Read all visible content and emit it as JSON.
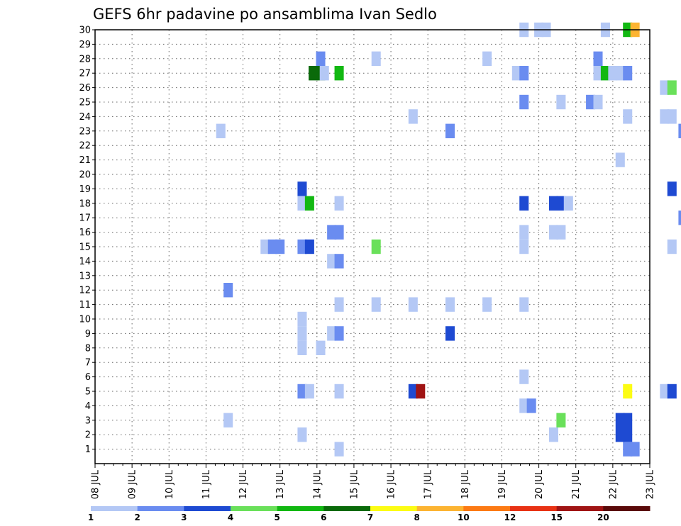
{
  "chart_data": {
    "type": "heatmap",
    "title": "GEFS 6hr padavine po ansamblima Ivan Sedlo",
    "x_axis": {
      "unit": "days",
      "range": [
        8,
        23
      ],
      "tick_values": [
        8,
        9,
        10,
        11,
        12,
        13,
        14,
        15,
        16,
        17,
        18,
        19,
        20,
        21,
        22,
        23
      ],
      "tick_labels": [
        "08 JUL",
        "09 JUL",
        "10 JUL",
        "11 JUL",
        "12 JUL",
        "13 JUL",
        "14 JUL",
        "15 JUL",
        "16 JUL",
        "17 JUL",
        "18 JUL",
        "19 JUL",
        "20 JUL",
        "21 JUL",
        "22 JUL",
        "23 JUL"
      ]
    },
    "y_axis": {
      "range": [
        0,
        30
      ],
      "tick_labels": [
        "1",
        "2",
        "3",
        "4",
        "5",
        "6",
        "7",
        "8",
        "9",
        "10",
        "11",
        "12",
        "13",
        "14",
        "15",
        "16",
        "17",
        "18",
        "19",
        "20",
        "21",
        "22",
        "23",
        "24",
        "25",
        "26",
        "27",
        "28",
        "29",
        "30"
      ]
    },
    "grid": true,
    "colorbar": {
      "placement": "bottom",
      "colors": [
        "#b4c8f5",
        "#6a8cf0",
        "#1e4ad2",
        "#6ae05a",
        "#12b812",
        "#0a6a0a",
        "#fcfc14",
        "#fcb432",
        "#fc7a14",
        "#e83214",
        "#a01414",
        "#5a0a0a"
      ],
      "boundaries": [
        "1",
        "2",
        "3",
        "4",
        "5",
        "6",
        "7",
        "8",
        "10",
        "12",
        "15",
        "20",
        ""
      ]
    },
    "cells": [
      {
        "x": 19.6,
        "m": 30,
        "c": 0
      },
      {
        "x": 20.0,
        "m": 30,
        "c": 0
      },
      {
        "x": 20.2,
        "m": 30,
        "c": 0
      },
      {
        "x": 21.8,
        "m": 30,
        "c": 0
      },
      {
        "x": 22.4,
        "m": 30,
        "c": 4
      },
      {
        "x": 22.6,
        "m": 30,
        "c": 7
      },
      {
        "x": 14.1,
        "m": 28,
        "c": 1
      },
      {
        "x": 15.6,
        "m": 28,
        "c": 0
      },
      {
        "x": 18.6,
        "m": 28,
        "c": 0
      },
      {
        "x": 21.6,
        "m": 28,
        "c": 1
      },
      {
        "x": 13.9,
        "m": 27,
        "c": 5
      },
      {
        "x": 14.1,
        "m": 27,
        "c": 5
      },
      {
        "x": 14.2,
        "m": 27,
        "c": 0
      },
      {
        "x": 14.6,
        "m": 27,
        "c": 4
      },
      {
        "x": 19.4,
        "m": 27,
        "c": 0
      },
      {
        "x": 19.6,
        "m": 27,
        "c": 1
      },
      {
        "x": 21.6,
        "m": 27,
        "c": 0
      },
      {
        "x": 21.8,
        "m": 27,
        "c": 4
      },
      {
        "x": 22.0,
        "m": 27,
        "c": 0
      },
      {
        "x": 22.2,
        "m": 27,
        "c": 0
      },
      {
        "x": 22.4,
        "m": 27,
        "c": 1
      },
      {
        "x": 23.4,
        "m": 26,
        "c": 0
      },
      {
        "x": 23.6,
        "m": 26,
        "c": 3
      },
      {
        "x": 19.6,
        "m": 25,
        "c": 1
      },
      {
        "x": 20.6,
        "m": 25,
        "c": 0
      },
      {
        "x": 21.4,
        "m": 25,
        "c": 1
      },
      {
        "x": 21.6,
        "m": 25,
        "c": 0
      },
      {
        "x": 16.6,
        "m": 24,
        "c": 0
      },
      {
        "x": 22.4,
        "m": 24,
        "c": 0
      },
      {
        "x": 23.4,
        "m": 24,
        "c": 0
      },
      {
        "x": 23.6,
        "m": 24,
        "c": 0
      },
      {
        "x": 11.4,
        "m": 23,
        "c": 0
      },
      {
        "x": 17.6,
        "m": 23,
        "c": 1
      },
      {
        "x": 23.9,
        "m": 23,
        "c": 1
      },
      {
        "x": 22.2,
        "m": 21,
        "c": 0
      },
      {
        "x": 13.6,
        "m": 19,
        "c": 2
      },
      {
        "x": 23.6,
        "m": 19,
        "c": 2
      },
      {
        "x": 13.6,
        "m": 18,
        "c": 0
      },
      {
        "x": 13.8,
        "m": 18,
        "c": 4
      },
      {
        "x": 14.6,
        "m": 18,
        "c": 0
      },
      {
        "x": 19.6,
        "m": 18,
        "c": 2
      },
      {
        "x": 20.4,
        "m": 18,
        "c": 2
      },
      {
        "x": 20.6,
        "m": 18,
        "c": 2
      },
      {
        "x": 20.8,
        "m": 18,
        "c": 0
      },
      {
        "x": 23.9,
        "m": 17,
        "c": 1
      },
      {
        "x": 14.4,
        "m": 16,
        "c": 1
      },
      {
        "x": 14.6,
        "m": 16,
        "c": 1
      },
      {
        "x": 19.6,
        "m": 16,
        "c": 0
      },
      {
        "x": 20.4,
        "m": 16,
        "c": 0
      },
      {
        "x": 20.6,
        "m": 16,
        "c": 0
      },
      {
        "x": 12.6,
        "m": 15,
        "c": 0
      },
      {
        "x": 12.8,
        "m": 15,
        "c": 1
      },
      {
        "x": 13.0,
        "m": 15,
        "c": 1
      },
      {
        "x": 13.6,
        "m": 15,
        "c": 1
      },
      {
        "x": 13.8,
        "m": 15,
        "c": 2
      },
      {
        "x": 15.6,
        "m": 15,
        "c": 3
      },
      {
        "x": 19.6,
        "m": 15,
        "c": 0
      },
      {
        "x": 23.6,
        "m": 15,
        "c": 0
      },
      {
        "x": 14.4,
        "m": 14,
        "c": 0
      },
      {
        "x": 14.6,
        "m": 14,
        "c": 1
      },
      {
        "x": 11.6,
        "m": 12,
        "c": 1
      },
      {
        "x": 14.6,
        "m": 11,
        "c": 0
      },
      {
        "x": 15.6,
        "m": 11,
        "c": 0
      },
      {
        "x": 16.6,
        "m": 11,
        "c": 0
      },
      {
        "x": 17.6,
        "m": 11,
        "c": 0
      },
      {
        "x": 18.6,
        "m": 11,
        "c": 0
      },
      {
        "x": 19.6,
        "m": 11,
        "c": 0
      },
      {
        "x": 13.6,
        "m": 10,
        "c": 0
      },
      {
        "x": 13.6,
        "m": 9,
        "c": 0
      },
      {
        "x": 14.4,
        "m": 9,
        "c": 0
      },
      {
        "x": 14.6,
        "m": 9,
        "c": 1
      },
      {
        "x": 17.6,
        "m": 9,
        "c": 2
      },
      {
        "x": 13.6,
        "m": 8,
        "c": 0
      },
      {
        "x": 14.1,
        "m": 8,
        "c": 0
      },
      {
        "x": 19.6,
        "m": 6,
        "c": 0
      },
      {
        "x": 13.6,
        "m": 5,
        "c": 1
      },
      {
        "x": 13.8,
        "m": 5,
        "c": 0
      },
      {
        "x": 14.6,
        "m": 5,
        "c": 0
      },
      {
        "x": 16.6,
        "m": 5,
        "c": 2
      },
      {
        "x": 16.8,
        "m": 5,
        "c": 10
      },
      {
        "x": 22.4,
        "m": 5,
        "c": 6
      },
      {
        "x": 23.4,
        "m": 5,
        "c": 0
      },
      {
        "x": 23.6,
        "m": 5,
        "c": 2
      },
      {
        "x": 19.6,
        "m": 4,
        "c": 0
      },
      {
        "x": 19.8,
        "m": 4,
        "c": 1
      },
      {
        "x": 11.6,
        "m": 3,
        "c": 0
      },
      {
        "x": 20.6,
        "m": 3,
        "c": 3
      },
      {
        "x": 22.2,
        "m": 3,
        "c": 2
      },
      {
        "x": 22.4,
        "m": 3,
        "c": 2
      },
      {
        "x": 22.2,
        "m": 2,
        "c": 2
      },
      {
        "x": 22.4,
        "m": 2,
        "c": 2
      },
      {
        "x": 13.6,
        "m": 2,
        "c": 0
      },
      {
        "x": 20.4,
        "m": 2,
        "c": 0
      },
      {
        "x": 14.6,
        "m": 1,
        "c": 0
      },
      {
        "x": 22.4,
        "m": 1,
        "c": 1
      },
      {
        "x": 22.6,
        "m": 1,
        "c": 1
      }
    ]
  }
}
